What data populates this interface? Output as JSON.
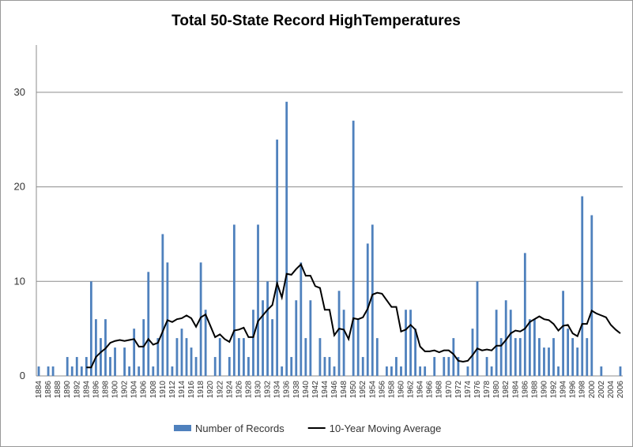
{
  "chart_data": {
    "type": "bar",
    "title": "Total 50-State Record HighTemperatures",
    "categories": [
      "1884",
      null,
      "1886",
      null,
      "1888",
      null,
      "1890",
      null,
      "1892",
      null,
      "1894",
      null,
      "1896",
      null,
      "1898",
      null,
      "1900",
      null,
      "1902",
      null,
      "1904",
      null,
      "1906",
      null,
      "1908",
      null,
      "1910",
      null,
      "1912",
      null,
      "1914",
      null,
      "1916",
      null,
      "1918",
      null,
      "1920",
      null,
      "1922",
      null,
      "1924",
      null,
      "1926",
      null,
      "1928",
      null,
      "1930",
      null,
      "1932",
      null,
      "1934",
      null,
      "1936",
      null,
      "1938",
      null,
      "1940",
      null,
      "1942",
      null,
      "1944",
      null,
      "1946",
      null,
      "1948",
      null,
      "1950",
      null,
      "1952",
      null,
      "1954",
      null,
      "1956",
      null,
      "1958",
      null,
      "1960",
      null,
      "1962",
      null,
      "1964",
      null,
      "1966",
      null,
      "1968",
      null,
      "1970",
      null,
      "1972",
      null,
      "1974",
      null,
      "1976",
      null,
      "1978",
      null,
      "1980",
      null,
      "1982",
      null,
      "1984",
      null,
      "1986",
      null,
      "1988",
      null,
      "1990",
      null,
      "1992",
      null,
      "1994",
      null,
      "1996",
      null,
      "1998",
      null,
      "2000",
      null,
      "2002",
      null,
      "2004",
      null,
      "2006"
    ],
    "series": [
      {
        "name": "Number of Records",
        "type": "bar",
        "color": "#4f81bd",
        "values": [
          1,
          0,
          1,
          1,
          0,
          0,
          2,
          1,
          2,
          1,
          2,
          10,
          6,
          4,
          6,
          2,
          3,
          0,
          3,
          1,
          5,
          1,
          6,
          11,
          1,
          4,
          15,
          12,
          1,
          4,
          5,
          4,
          3,
          2,
          12,
          7,
          0,
          2,
          4,
          0,
          2,
          16,
          4,
          4,
          2,
          7,
          16,
          8,
          10,
          6,
          25,
          1,
          29,
          2,
          8,
          12,
          4,
          8,
          0,
          4,
          2,
          2,
          1,
          9,
          7,
          0,
          27,
          6,
          2,
          14,
          16,
          4,
          0,
          1,
          1,
          2,
          1,
          7,
          7,
          5,
          1,
          1,
          0,
          2,
          0,
          2,
          2,
          4,
          2,
          0,
          1,
          5,
          10,
          0,
          2,
          1,
          7,
          4,
          8,
          7,
          4,
          4,
          13,
          6,
          6,
          4,
          3,
          3,
          4,
          1,
          9,
          5,
          4,
          3,
          19,
          4,
          17,
          0,
          1,
          0,
          0,
          0,
          1
        ]
      },
      {
        "name": "10-Year Moving Average",
        "type": "line",
        "color": "#000000",
        "values": [
          null,
          null,
          null,
          null,
          null,
          null,
          null,
          null,
          null,
          null,
          0.9,
          0.9,
          2.0,
          2.5,
          2.9,
          3.5,
          3.7,
          3.8,
          3.7,
          3.8,
          3.9,
          3.1,
          3.1,
          3.9,
          3.3,
          3.5,
          4.7,
          5.9,
          5.7,
          6.0,
          6.1,
          6.4,
          6.1,
          5.2,
          6.2,
          6.5,
          5.3,
          4.1,
          4.4,
          3.9,
          3.6,
          4.8,
          4.9,
          5.1,
          4.1,
          4.1,
          5.8,
          6.4,
          7.0,
          7.5,
          9.8,
          8.3,
          10.8,
          10.7,
          11.3,
          11.8,
          10.6,
          10.6,
          9.5,
          9.3,
          7.0,
          7.0,
          4.3,
          5.0,
          4.9,
          3.9,
          6.1,
          6.0,
          6.2,
          7.1,
          8.6,
          8.8,
          8.7,
          8.0,
          7.3,
          7.3,
          4.7,
          4.9,
          5.4,
          4.9,
          3.1,
          2.6,
          2.6,
          2.7,
          2.5,
          2.7,
          2.7,
          2.3,
          1.6,
          1.5,
          1.6,
          2.2,
          2.9,
          2.7,
          2.8,
          2.7,
          3.2,
          3.2,
          3.8,
          4.5,
          4.8,
          4.7,
          5.0,
          5.7,
          6.0,
          6.3,
          6.0,
          5.9,
          5.5,
          4.8,
          5.3,
          5.4,
          4.5,
          4.2,
          5.5,
          5.5,
          6.9,
          6.6,
          6.4,
          6.2,
          5.4,
          4.9,
          4.5
        ]
      }
    ],
    "ylim": [
      0,
      35
    ],
    "yticks": [
      0,
      10,
      20,
      30
    ],
    "grid": true,
    "legend": "bottom"
  }
}
